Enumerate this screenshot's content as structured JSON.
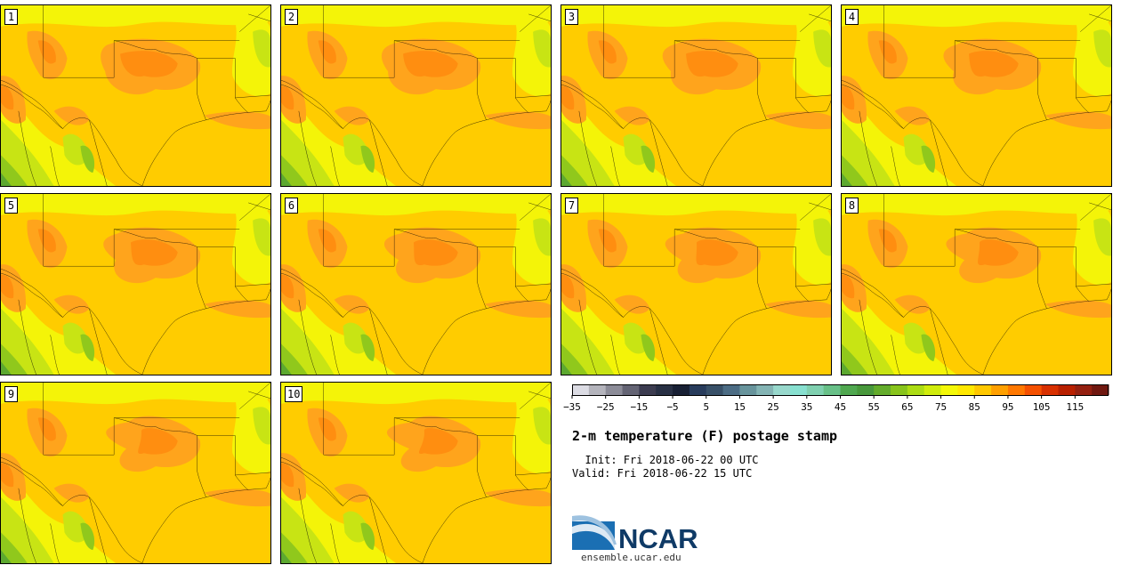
{
  "product": {
    "title": "2-m temperature (F) postage stamp",
    "init": "  Init: Fri 2018-06-22 00 UTC",
    "valid": "Valid: Fri 2018-06-22 15 UTC"
  },
  "members": [
    "1",
    "2",
    "3",
    "4",
    "5",
    "6",
    "7",
    "8",
    "9",
    "10"
  ],
  "colorbar": {
    "labels": [
      "-35",
      "-25",
      "-15",
      "-5",
      "5",
      "15",
      "25",
      "35",
      "45",
      "55",
      "65",
      "75",
      "85",
      "95",
      "105",
      "115"
    ],
    "colors": [
      "#dcdce4",
      "#b4b4bc",
      "#8c8c98",
      "#646474",
      "#3c3c50",
      "#283044",
      "#182034",
      "#283c5c",
      "#385068",
      "#4c6c84",
      "#68949c",
      "#84b4b4",
      "#98d8cc",
      "#88e0d0",
      "#80d0b0",
      "#68c088",
      "#50a850",
      "#48983c",
      "#64ac2c",
      "#88c41c",
      "#acdc14",
      "#d0ec0c",
      "#f4f808",
      "#ffe800",
      "#ffc800",
      "#ffa000",
      "#ff7800",
      "#f45000",
      "#d83000",
      "#b82000",
      "#942010",
      "#701810"
    ],
    "map_colors": {
      "base": "#ffcc00",
      "cool_1": "#f4f408",
      "cool_2": "#c8e414",
      "cool_3": "#90c81c",
      "cool_4": "#5ca830",
      "warm_1": "#ffa41c",
      "warm_2": "#ff8e10"
    }
  },
  "logo": {
    "name": "NCAR",
    "url": "ensemble.ucar.edu",
    "colors": {
      "blue": "#1b6fb3",
      "navy": "#0f3a66"
    }
  }
}
